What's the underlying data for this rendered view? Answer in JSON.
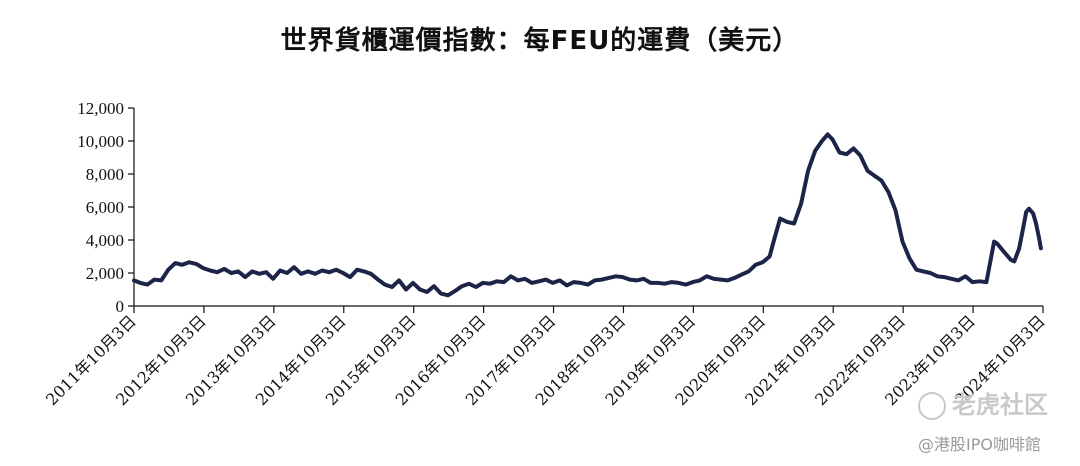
{
  "chart_data": {
    "type": "line",
    "title": "世界貨櫃運價指數：每FEU的運費（美元）",
    "xlabel": "",
    "ylabel": "",
    "ylim": [
      0,
      12000
    ],
    "yticks": [
      "0",
      "2,000",
      "4,000",
      "6,000",
      "8,000",
      "10,000",
      "12,000"
    ],
    "xlim": [
      2011.76,
      2024.76
    ],
    "xticks": [
      "2011年10月3日",
      "2012年10月3日",
      "2013年10月3日",
      "2014年10月3日",
      "2015年10月3日",
      "2016年10月3日",
      "2017年10月3日",
      "2018年10月3日",
      "2019年10月3日",
      "2020年10月3日",
      "2021年10月3日",
      "2022年10月3日",
      "2023年10月3日",
      "2024年10月3日"
    ],
    "line_color": "#1c2448",
    "grid": false,
    "series": [
      {
        "values": [
          [
            2011.76,
            1550
          ],
          [
            2011.85,
            1400
          ],
          [
            2011.95,
            1300
          ],
          [
            2012.05,
            1600
          ],
          [
            2012.15,
            1550
          ],
          [
            2012.25,
            2200
          ],
          [
            2012.35,
            2600
          ],
          [
            2012.45,
            2500
          ],
          [
            2012.55,
            2650
          ],
          [
            2012.65,
            2550
          ],
          [
            2012.75,
            2300
          ],
          [
            2012.85,
            2150
          ],
          [
            2012.95,
            2050
          ],
          [
            2013.05,
            2250
          ],
          [
            2013.15,
            2000
          ],
          [
            2013.25,
            2100
          ],
          [
            2013.35,
            1750
          ],
          [
            2013.45,
            2100
          ],
          [
            2013.55,
            1950
          ],
          [
            2013.65,
            2050
          ],
          [
            2013.75,
            1650
          ],
          [
            2013.85,
            2150
          ],
          [
            2013.95,
            2000
          ],
          [
            2014.05,
            2350
          ],
          [
            2014.15,
            1950
          ],
          [
            2014.25,
            2100
          ],
          [
            2014.35,
            1950
          ],
          [
            2014.45,
            2150
          ],
          [
            2014.55,
            2050
          ],
          [
            2014.65,
            2200
          ],
          [
            2014.75,
            2000
          ],
          [
            2014.85,
            1750
          ],
          [
            2014.95,
            2200
          ],
          [
            2015.05,
            2100
          ],
          [
            2015.15,
            1950
          ],
          [
            2015.25,
            1600
          ],
          [
            2015.35,
            1300
          ],
          [
            2015.45,
            1150
          ],
          [
            2015.55,
            1550
          ],
          [
            2015.65,
            1000
          ],
          [
            2015.75,
            1400
          ],
          [
            2015.85,
            1000
          ],
          [
            2015.95,
            850
          ],
          [
            2016.05,
            1200
          ],
          [
            2016.15,
            750
          ],
          [
            2016.25,
            650
          ],
          [
            2016.35,
            900
          ],
          [
            2016.45,
            1200
          ],
          [
            2016.55,
            1350
          ],
          [
            2016.65,
            1150
          ],
          [
            2016.75,
            1400
          ],
          [
            2016.85,
            1350
          ],
          [
            2016.95,
            1500
          ],
          [
            2017.05,
            1450
          ],
          [
            2017.15,
            1800
          ],
          [
            2017.25,
            1550
          ],
          [
            2017.35,
            1650
          ],
          [
            2017.45,
            1400
          ],
          [
            2017.55,
            1500
          ],
          [
            2017.65,
            1600
          ],
          [
            2017.75,
            1400
          ],
          [
            2017.85,
            1550
          ],
          [
            2017.95,
            1250
          ],
          [
            2018.05,
            1450
          ],
          [
            2018.15,
            1400
          ],
          [
            2018.25,
            1300
          ],
          [
            2018.35,
            1550
          ],
          [
            2018.45,
            1600
          ],
          [
            2018.55,
            1700
          ],
          [
            2018.65,
            1800
          ],
          [
            2018.75,
            1750
          ],
          [
            2018.85,
            1600
          ],
          [
            2018.95,
            1550
          ],
          [
            2019.05,
            1650
          ],
          [
            2019.15,
            1400
          ],
          [
            2019.25,
            1400
          ],
          [
            2019.35,
            1350
          ],
          [
            2019.45,
            1450
          ],
          [
            2019.55,
            1400
          ],
          [
            2019.65,
            1300
          ],
          [
            2019.75,
            1450
          ],
          [
            2019.85,
            1550
          ],
          [
            2019.95,
            1800
          ],
          [
            2020.05,
            1650
          ],
          [
            2020.15,
            1600
          ],
          [
            2020.25,
            1550
          ],
          [
            2020.35,
            1700
          ],
          [
            2020.45,
            1900
          ],
          [
            2020.55,
            2100
          ],
          [
            2020.65,
            2500
          ],
          [
            2020.75,
            2650
          ],
          [
            2020.85,
            3000
          ],
          [
            2020.92,
            4100
          ],
          [
            2021.0,
            5300
          ],
          [
            2021.1,
            5100
          ],
          [
            2021.2,
            5000
          ],
          [
            2021.3,
            6200
          ],
          [
            2021.4,
            8200
          ],
          [
            2021.5,
            9400
          ],
          [
            2021.6,
            10000
          ],
          [
            2021.68,
            10400
          ],
          [
            2021.75,
            10100
          ],
          [
            2021.85,
            9300
          ],
          [
            2021.95,
            9200
          ],
          [
            2022.05,
            9550
          ],
          [
            2022.15,
            9100
          ],
          [
            2022.25,
            8200
          ],
          [
            2022.35,
            7900
          ],
          [
            2022.45,
            7600
          ],
          [
            2022.55,
            6900
          ],
          [
            2022.65,
            5800
          ],
          [
            2022.75,
            3900
          ],
          [
            2022.85,
            2900
          ],
          [
            2022.95,
            2200
          ],
          [
            2023.05,
            2100
          ],
          [
            2023.15,
            2000
          ],
          [
            2023.25,
            1800
          ],
          [
            2023.35,
            1750
          ],
          [
            2023.45,
            1650
          ],
          [
            2023.55,
            1550
          ],
          [
            2023.65,
            1800
          ],
          [
            2023.75,
            1450
          ],
          [
            2023.85,
            1500
          ],
          [
            2023.95,
            1450
          ],
          [
            2024.02,
            3000
          ],
          [
            2024.06,
            3900
          ],
          [
            2024.1,
            3800
          ],
          [
            2024.2,
            3300
          ],
          [
            2024.3,
            2800
          ],
          [
            2024.35,
            2700
          ],
          [
            2024.42,
            3500
          ],
          [
            2024.48,
            4800
          ],
          [
            2024.52,
            5700
          ],
          [
            2024.56,
            5900
          ],
          [
            2024.62,
            5600
          ],
          [
            2024.66,
            5000
          ],
          [
            2024.7,
            4200
          ],
          [
            2024.73,
            3500
          ]
        ]
      }
    ]
  },
  "watermark": {
    "brand": "老虎社区",
    "account": "@港股IPO咖啡館"
  }
}
